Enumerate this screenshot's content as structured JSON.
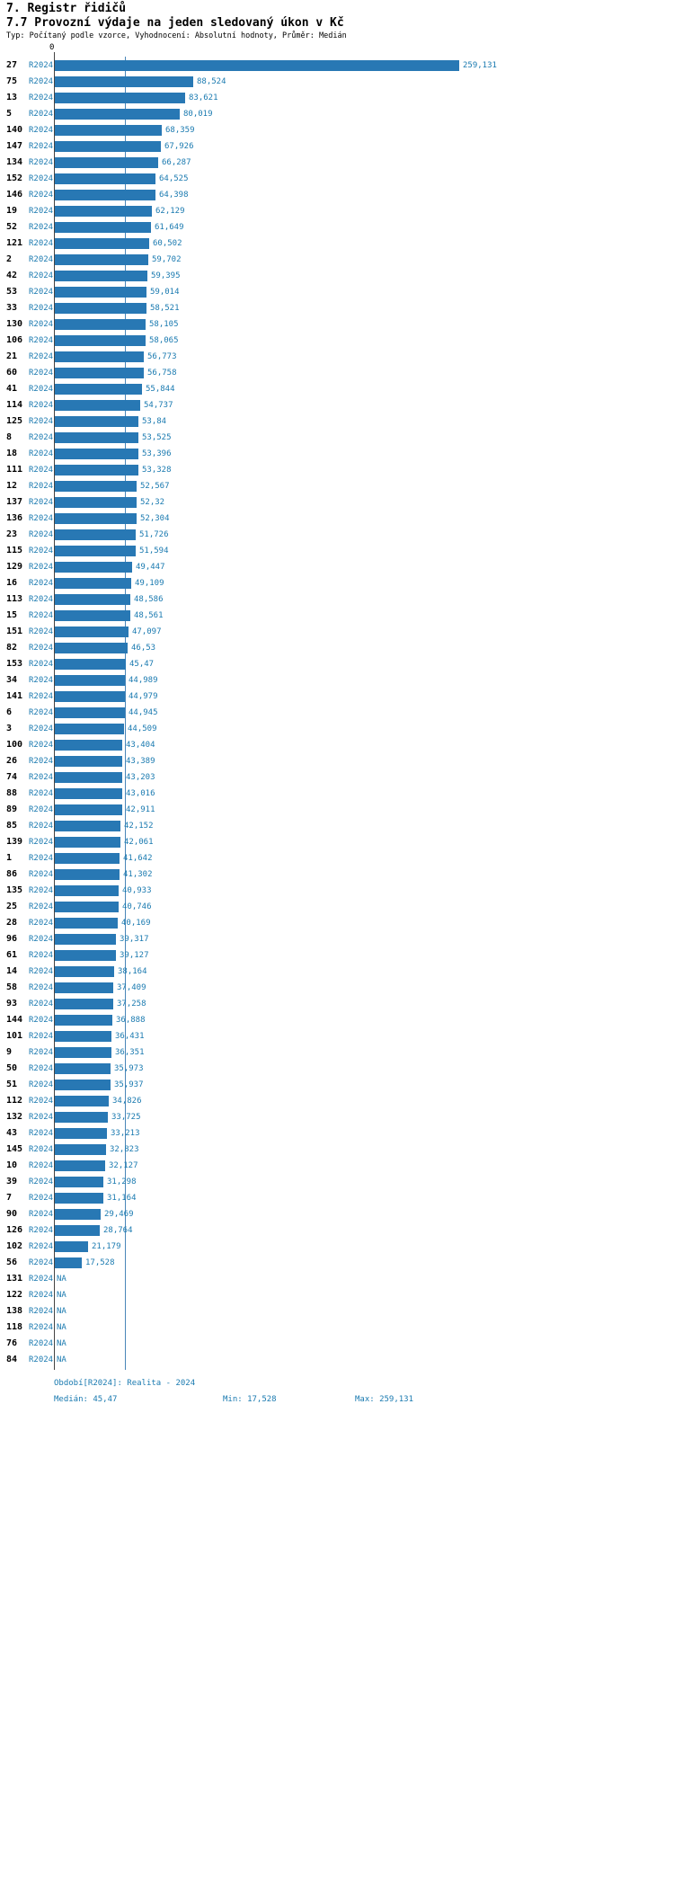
{
  "page": {
    "title": "7. Registr řidičů",
    "subtitle": "7.7 Provozní výdaje na jeden sledovaný úkon v Kč",
    "type_line": "Typ: Počítaný podle vzorce, Vyhodnocení: Absolutní hodnoty, Průměr: Medián"
  },
  "chart_data": {
    "type": "bar",
    "orientation": "horizontal",
    "title": "7.7 Provozní výdaje na jeden sledovaný úkon v Kč",
    "series_name": "R2024",
    "axis_zero_label": "0",
    "x_range": [
      0,
      259.131
    ],
    "median_value": 45.47,
    "min_value": 17.528,
    "max_value": 259.131,
    "grid": "median-line-only",
    "legend_position": "none",
    "colors": {
      "bar": "#2878b4",
      "text": "#1a7ab0",
      "median_line": "#4a86b8",
      "axis": "#444444"
    },
    "rows": [
      {
        "id": "27",
        "period": "R2024",
        "value": 259.131,
        "label": "259,131"
      },
      {
        "id": "75",
        "period": "R2024",
        "value": 88.524,
        "label": "88,524"
      },
      {
        "id": "13",
        "period": "R2024",
        "value": 83.621,
        "label": "83,621"
      },
      {
        "id": "5",
        "period": "R2024",
        "value": 80.019,
        "label": "80,019"
      },
      {
        "id": "140",
        "period": "R2024",
        "value": 68.359,
        "label": "68,359"
      },
      {
        "id": "147",
        "period": "R2024",
        "value": 67.926,
        "label": "67,926"
      },
      {
        "id": "134",
        "period": "R2024",
        "value": 66.287,
        "label": "66,287"
      },
      {
        "id": "152",
        "period": "R2024",
        "value": 64.525,
        "label": "64,525"
      },
      {
        "id": "146",
        "period": "R2024",
        "value": 64.398,
        "label": "64,398"
      },
      {
        "id": "19",
        "period": "R2024",
        "value": 62.129,
        "label": "62,129"
      },
      {
        "id": "52",
        "period": "R2024",
        "value": 61.649,
        "label": "61,649"
      },
      {
        "id": "121",
        "period": "R2024",
        "value": 60.502,
        "label": "60,502"
      },
      {
        "id": "2",
        "period": "R2024",
        "value": 59.702,
        "label": "59,702"
      },
      {
        "id": "42",
        "period": "R2024",
        "value": 59.395,
        "label": "59,395"
      },
      {
        "id": "53",
        "period": "R2024",
        "value": 59.014,
        "label": "59,014"
      },
      {
        "id": "33",
        "period": "R2024",
        "value": 58.521,
        "label": "58,521"
      },
      {
        "id": "130",
        "period": "R2024",
        "value": 58.105,
        "label": "58,105"
      },
      {
        "id": "106",
        "period": "R2024",
        "value": 58.065,
        "label": "58,065"
      },
      {
        "id": "21",
        "period": "R2024",
        "value": 56.773,
        "label": "56,773"
      },
      {
        "id": "60",
        "period": "R2024",
        "value": 56.758,
        "label": "56,758"
      },
      {
        "id": "41",
        "period": "R2024",
        "value": 55.844,
        "label": "55,844"
      },
      {
        "id": "114",
        "period": "R2024",
        "value": 54.737,
        "label": "54,737"
      },
      {
        "id": "125",
        "period": "R2024",
        "value": 53.84,
        "label": "53,84"
      },
      {
        "id": "8",
        "period": "R2024",
        "value": 53.525,
        "label": "53,525"
      },
      {
        "id": "18",
        "period": "R2024",
        "value": 53.396,
        "label": "53,396"
      },
      {
        "id": "111",
        "period": "R2024",
        "value": 53.328,
        "label": "53,328"
      },
      {
        "id": "12",
        "period": "R2024",
        "value": 52.567,
        "label": "52,567"
      },
      {
        "id": "137",
        "period": "R2024",
        "value": 52.32,
        "label": "52,32"
      },
      {
        "id": "136",
        "period": "R2024",
        "value": 52.304,
        "label": "52,304"
      },
      {
        "id": "23",
        "period": "R2024",
        "value": 51.726,
        "label": "51,726"
      },
      {
        "id": "115",
        "period": "R2024",
        "value": 51.594,
        "label": "51,594"
      },
      {
        "id": "129",
        "period": "R2024",
        "value": 49.447,
        "label": "49,447"
      },
      {
        "id": "16",
        "period": "R2024",
        "value": 49.109,
        "label": "49,109"
      },
      {
        "id": "113",
        "period": "R2024",
        "value": 48.586,
        "label": "48,586"
      },
      {
        "id": "15",
        "period": "R2024",
        "value": 48.561,
        "label": "48,561"
      },
      {
        "id": "151",
        "period": "R2024",
        "value": 47.097,
        "label": "47,097"
      },
      {
        "id": "82",
        "period": "R2024",
        "value": 46.53,
        "label": "46,53"
      },
      {
        "id": "153",
        "period": "R2024",
        "value": 45.47,
        "label": "45,47"
      },
      {
        "id": "34",
        "period": "R2024",
        "value": 44.989,
        "label": "44,989"
      },
      {
        "id": "141",
        "period": "R2024",
        "value": 44.979,
        "label": "44,979"
      },
      {
        "id": "6",
        "period": "R2024",
        "value": 44.945,
        "label": "44,945"
      },
      {
        "id": "3",
        "period": "R2024",
        "value": 44.509,
        "label": "44,509"
      },
      {
        "id": "100",
        "period": "R2024",
        "value": 43.404,
        "label": "43,404"
      },
      {
        "id": "26",
        "period": "R2024",
        "value": 43.389,
        "label": "43,389"
      },
      {
        "id": "74",
        "period": "R2024",
        "value": 43.203,
        "label": "43,203"
      },
      {
        "id": "88",
        "period": "R2024",
        "value": 43.016,
        "label": "43,016"
      },
      {
        "id": "89",
        "period": "R2024",
        "value": 42.911,
        "label": "42,911"
      },
      {
        "id": "85",
        "period": "R2024",
        "value": 42.152,
        "label": "42,152"
      },
      {
        "id": "139",
        "period": "R2024",
        "value": 42.061,
        "label": "42,061"
      },
      {
        "id": "1",
        "period": "R2024",
        "value": 41.642,
        "label": "41,642"
      },
      {
        "id": "86",
        "period": "R2024",
        "value": 41.302,
        "label": "41,302"
      },
      {
        "id": "135",
        "period": "R2024",
        "value": 40.933,
        "label": "40,933"
      },
      {
        "id": "25",
        "period": "R2024",
        "value": 40.746,
        "label": "40,746"
      },
      {
        "id": "28",
        "period": "R2024",
        "value": 40.169,
        "label": "40,169"
      },
      {
        "id": "96",
        "period": "R2024",
        "value": 39.317,
        "label": "39,317"
      },
      {
        "id": "61",
        "period": "R2024",
        "value": 39.127,
        "label": "39,127"
      },
      {
        "id": "14",
        "period": "R2024",
        "value": 38.164,
        "label": "38,164"
      },
      {
        "id": "58",
        "period": "R2024",
        "value": 37.409,
        "label": "37,409"
      },
      {
        "id": "93",
        "period": "R2024",
        "value": 37.258,
        "label": "37,258"
      },
      {
        "id": "144",
        "period": "R2024",
        "value": 36.888,
        "label": "36,888"
      },
      {
        "id": "101",
        "period": "R2024",
        "value": 36.431,
        "label": "36,431"
      },
      {
        "id": "9",
        "period": "R2024",
        "value": 36.351,
        "label": "36,351"
      },
      {
        "id": "50",
        "period": "R2024",
        "value": 35.973,
        "label": "35,973"
      },
      {
        "id": "51",
        "period": "R2024",
        "value": 35.937,
        "label": "35,937"
      },
      {
        "id": "112",
        "period": "R2024",
        "value": 34.826,
        "label": "34,826"
      },
      {
        "id": "132",
        "period": "R2024",
        "value": 33.725,
        "label": "33,725"
      },
      {
        "id": "43",
        "period": "R2024",
        "value": 33.213,
        "label": "33,213"
      },
      {
        "id": "145",
        "period": "R2024",
        "value": 32.823,
        "label": "32,823"
      },
      {
        "id": "10",
        "period": "R2024",
        "value": 32.127,
        "label": "32,127"
      },
      {
        "id": "39",
        "period": "R2024",
        "value": 31.298,
        "label": "31,298"
      },
      {
        "id": "7",
        "period": "R2024",
        "value": 31.164,
        "label": "31,164"
      },
      {
        "id": "90",
        "period": "R2024",
        "value": 29.469,
        "label": "29,469"
      },
      {
        "id": "126",
        "period": "R2024",
        "value": 28.764,
        "label": "28,764"
      },
      {
        "id": "102",
        "period": "R2024",
        "value": 21.179,
        "label": "21,179"
      },
      {
        "id": "56",
        "period": "R2024",
        "value": 17.528,
        "label": "17,528"
      },
      {
        "id": "131",
        "period": "R2024",
        "value": null,
        "label": "NA"
      },
      {
        "id": "122",
        "period": "R2024",
        "value": null,
        "label": "NA"
      },
      {
        "id": "138",
        "period": "R2024",
        "value": null,
        "label": "NA"
      },
      {
        "id": "118",
        "period": "R2024",
        "value": null,
        "label": "NA"
      },
      {
        "id": "76",
        "period": "R2024",
        "value": null,
        "label": "NA"
      },
      {
        "id": "84",
        "period": "R2024",
        "value": null,
        "label": "NA"
      }
    ]
  },
  "footer": {
    "period_info": "Období[R2024]: Realita - 2024",
    "median": "Medián: 45,47",
    "min": "Min: 17,528",
    "max": "Max: 259,131"
  }
}
